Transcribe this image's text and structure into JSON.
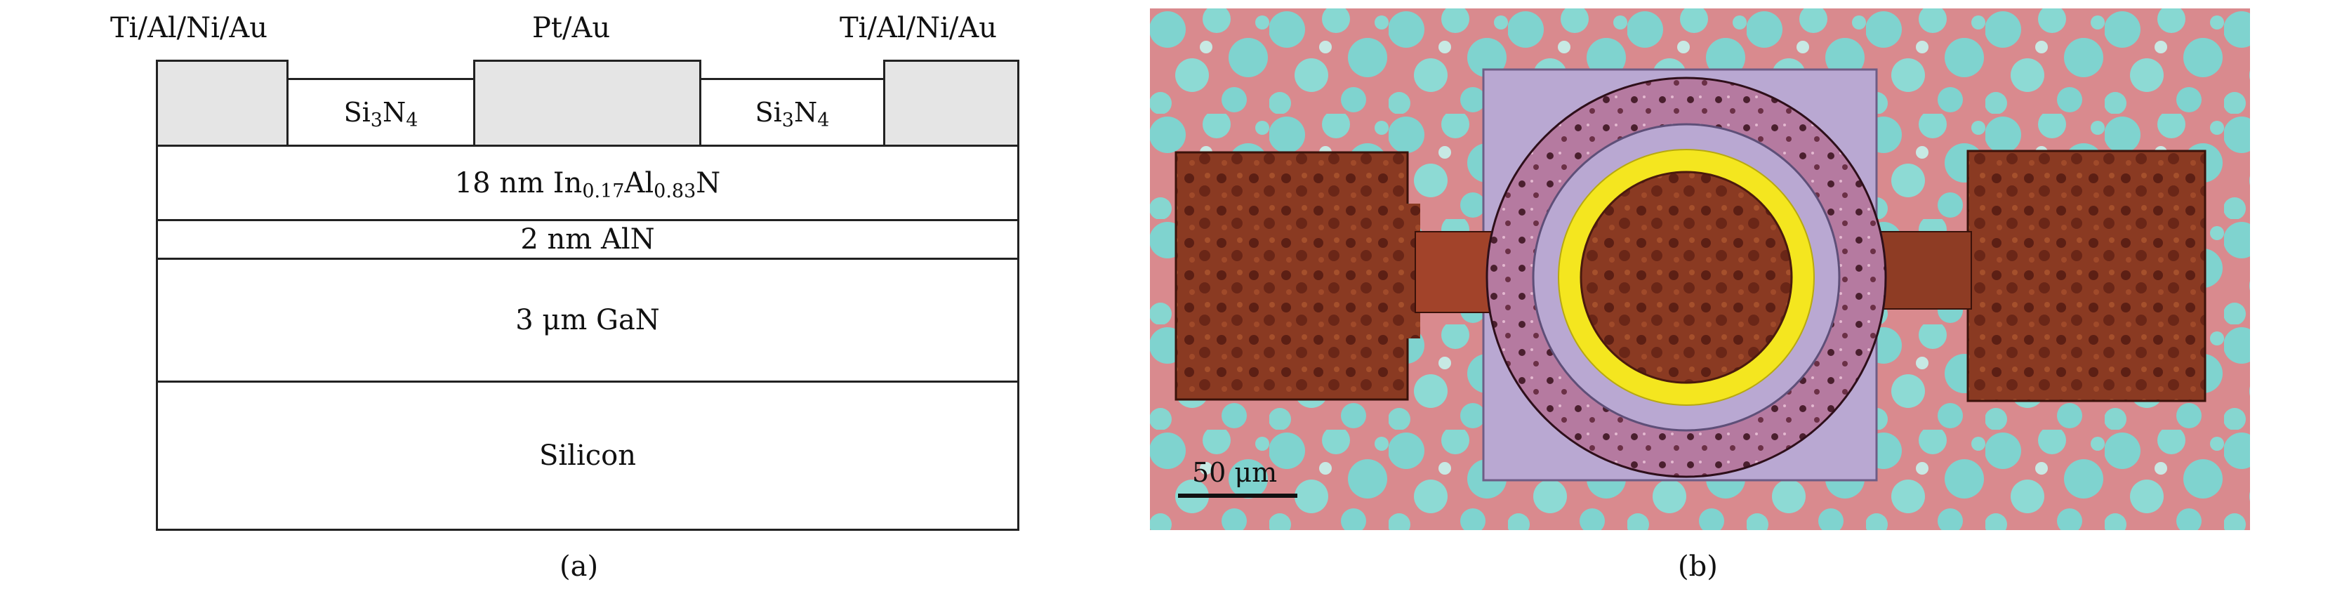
{
  "panel_a": {
    "metal_left": "Ti/Al/Ni/Au",
    "metal_center": "Pt/Au",
    "metal_right": "Ti/Al/Ni/Au",
    "passivation": {
      "base": "Si",
      "sub1": "3",
      "mid": "N",
      "sub2": "4"
    },
    "barrier": {
      "prefix": "18 nm In",
      "sub1": "0.17",
      "mid": "Al",
      "sub2": "0.83",
      "suffix": "N"
    },
    "spacer": "2 nm AlN",
    "buffer": "3 μm GaN",
    "substrate": "Silicon",
    "caption": "(a)"
  },
  "panel_b": {
    "scale_bar": "50 μm",
    "caption": "(b)"
  },
  "colors": {
    "background_cyan": "#7fd3cf",
    "background_pink": "#d98a8e",
    "pad_brown": "#8a3a22",
    "ring_pink": "#b57aa0",
    "ring_yellow": "#f4e61f",
    "passivation_lavender": "#b9a8d2",
    "metal_gray": "#e5e5e5"
  }
}
